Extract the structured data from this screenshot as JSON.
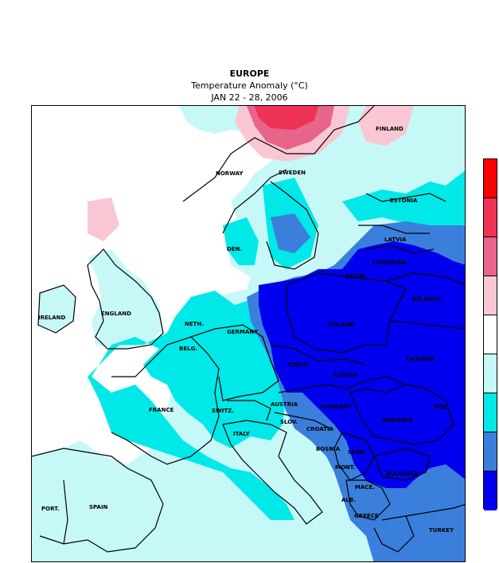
{
  "header": {
    "region": "EUROPE",
    "variable": "Temperature Anomaly (°C)",
    "period": "JAN 22 - 28, 2006"
  },
  "legend": {
    "colors": [
      "#ff0000",
      "#ee3355",
      "#e8648a",
      "#f9c7d4",
      "#ffffff",
      "#c7f8f8",
      "#00e8e8",
      "#3a7fdc",
      "#0000ee"
    ]
  },
  "countries": [
    "FINLAND",
    "NORWAY",
    "SWEDEN",
    "ESTONIA",
    "LATVIA",
    "LITHUANIA",
    "DEN.",
    "BELARUS",
    "IRELAND",
    "ENGLAND",
    "POLAND",
    "NETH.",
    "GERMANY",
    "BELG.",
    "UKRAINE",
    "CZECH",
    "SLOVAK.",
    "FRANCE",
    "SWITZ.",
    "AUSTRIA",
    "HUNGARY",
    "MOL.",
    "ROMANIA",
    "SLOV.",
    "CROATIA",
    "ITALY",
    "BOSNIA",
    "SERB.",
    "BULGARIA",
    "MONT.",
    "MACE.",
    "PORT.",
    "SPAIN",
    "ALB.",
    "GREECE",
    "TURKEY",
    "KALIN."
  ]
}
